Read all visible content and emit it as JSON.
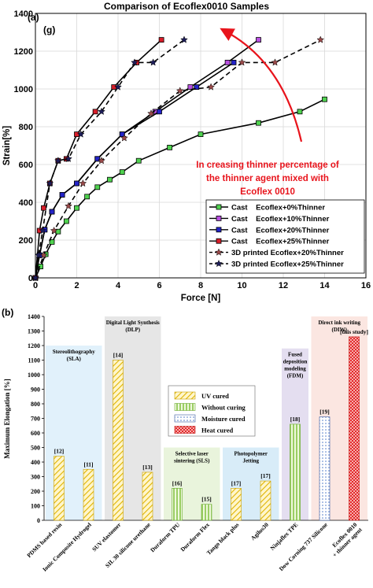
{
  "panel_a": {
    "panel_label": "(a)",
    "sub_label": "(g)",
    "annotation": [
      "In creasing thinner percentage of",
      "the thinner agent mixed with",
      "Ecoflex 0010"
    ],
    "annotation_color": "#e8141c"
  },
  "panel_b": {
    "panel_label": "(b)",
    "region_labels": [
      [
        "Stereolithography",
        "(SLA)"
      ],
      [
        "Digital Light Synthesis",
        "(DLP)"
      ],
      [
        "Selective laser",
        "sintering (SLS)"
      ],
      [
        "Photopolymer",
        "Jetting"
      ],
      [
        "Fused",
        "deposition",
        "modeling",
        "(FDM)"
      ],
      [
        "Direct ink writing",
        "(DIW)"
      ]
    ],
    "legend_labels": [
      "UV cured",
      "Without curing",
      "Moisture cured",
      "Heat cured"
    ]
  },
  "chart_data": [
    {
      "type": "line",
      "title": "Comparison of Ecoflex0010 Samples",
      "xlabel": "Force [N]",
      "ylabel": "Strain[%]",
      "xlim": [
        0,
        16
      ],
      "ylim": [
        0,
        1400
      ],
      "xticks": [
        "0",
        "2",
        "4",
        "6",
        "8",
        "10",
        "12",
        "14",
        "16"
      ],
      "yticks": [
        "0",
        "200",
        "400",
        "600",
        "800",
        "1000",
        "1200",
        "1400"
      ],
      "grid": true,
      "legend_position": "bottom-right",
      "series": [
        {
          "name": "Cast    Ecoflex+0%Thinner",
          "color": "#000000",
          "marker_color": "#4fd24f",
          "marker": "square",
          "dashed": false,
          "x": [
            0,
            0.25,
            0.5,
            0.8,
            1.1,
            1.5,
            2.0,
            2.5,
            3.0,
            3.6,
            4.2,
            5.0,
            6.5,
            8.0,
            10.8,
            12.8,
            14.0
          ],
          "y": [
            0,
            60,
            125,
            190,
            245,
            300,
            370,
            430,
            480,
            520,
            560,
            620,
            690,
            760,
            820,
            880,
            945
          ]
        },
        {
          "name": "Cast    Ecoflex+10%Thinner",
          "color": "#000000",
          "marker_color": "#b84fe0",
          "marker": "square",
          "dashed": false,
          "x": [
            0,
            0.2,
            0.45,
            0.8,
            1.3,
            2.0,
            3.0,
            4.2,
            5.8,
            7.5,
            9.3,
            10.8
          ],
          "y": [
            0,
            120,
            255,
            350,
            440,
            500,
            630,
            760,
            880,
            1010,
            1140,
            1260
          ]
        },
        {
          "name": "Cast    Ecoflex+20%Thinner",
          "color": "#000000",
          "marker_color": "#2424c8",
          "marker": "square",
          "dashed": false,
          "x": [
            0,
            0.2,
            0.45,
            0.8,
            1.3,
            2.0,
            3.0,
            4.2,
            6.0,
            7.8,
            9.6
          ],
          "y": [
            0,
            120,
            255,
            350,
            440,
            500,
            630,
            760,
            880,
            1010,
            1140
          ]
        },
        {
          "name": "Cast    Ecoflex+25%Thinner",
          "color": "#000000",
          "marker_color": "#d81e2a",
          "marker": "square",
          "dashed": false,
          "x": [
            0,
            0.2,
            0.4,
            0.7,
            1.1,
            1.5,
            2.0,
            2.9,
            3.8,
            4.9,
            6.1
          ],
          "y": [
            0,
            250,
            370,
            500,
            620,
            630,
            760,
            880,
            1010,
            1140,
            1260
          ]
        },
        {
          "name": "3D printed Ecoflex+20%Thinner",
          "color": "#000000",
          "marker_color": "#9a4a4a",
          "marker": "star",
          "dashed": true,
          "x": [
            0,
            0.4,
            0.9,
            1.6,
            2.3,
            3.2,
            4.3,
            5.6,
            7.0,
            8.5,
            10.0,
            11.6,
            13.8
          ],
          "y": [
            0,
            120,
            250,
            380,
            500,
            620,
            740,
            870,
            990,
            1010,
            1140,
            1140,
            1260
          ]
        },
        {
          "name": "3D printed Ecoflex+25%Thinner",
          "color": "#000000",
          "marker_color": "#1e1e5a",
          "marker": "star",
          "dashed": true,
          "x": [
            0,
            0.15,
            0.35,
            0.7,
            1.1,
            1.6,
            2.2,
            3.2,
            4.0,
            4.8,
            5.7,
            7.2
          ],
          "y": [
            0,
            120,
            250,
            500,
            620,
            630,
            760,
            880,
            1010,
            1140,
            1140,
            1260
          ]
        }
      ]
    },
    {
      "type": "bar",
      "xlabel": "",
      "ylabel": "Maximum Elongation [%]",
      "ylim": [
        0,
        1400
      ],
      "yticks": [
        "0",
        "100",
        "200",
        "300",
        "400",
        "500",
        "600",
        "700",
        "800",
        "900",
        "1000",
        "1100",
        "1200",
        "1300",
        "1400"
      ],
      "categories": [
        "PDMS based resin",
        "Ionic Composite Hydrogel",
        "SUV elastomer",
        "SIL 30 silicone urethane",
        "Duraform TPU",
        "Duraform Flex",
        "Tango black plus",
        "Agilus30",
        "Ninjaflex TPE",
        "Dow Corning 737 Silicone",
        "Ecoflex 0010\n+ thinner agent"
      ],
      "values": [
        440,
        350,
        1100,
        330,
        220,
        110,
        220,
        270,
        660,
        710,
        1260
      ],
      "bar_labels": [
        "[12]",
        "[11]",
        "[14]",
        "[13]",
        "[16]",
        "[15]",
        "[17]",
        "[17]",
        "[18]",
        "[19]",
        "[this study]"
      ],
      "curing": [
        "UV cured",
        "UV cured",
        "UV cured",
        "UV cured",
        "Without curing",
        "Without curing",
        "UV cured",
        "UV cured",
        "Without curing",
        "Moisture cured",
        "Heat cured"
      ],
      "legend_position": "center"
    }
  ]
}
